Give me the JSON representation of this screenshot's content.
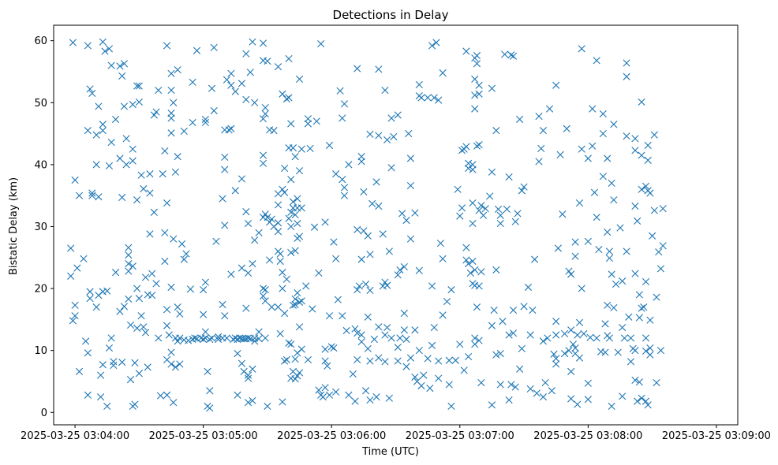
{
  "chart_data": {
    "type": "scatter",
    "title": "Detections in Delay",
    "xlabel": "Time (UTC)",
    "ylabel": "Bistatic Delay (km)",
    "marker": "x",
    "marker_color": "#1f77b4",
    "grid": false,
    "legend": "none",
    "xlim": [
      "2025-03-25 03:03:50",
      "2025-03-25 03:09:10"
    ],
    "ylim": [
      -2,
      62.5
    ],
    "x_ticks": [
      "2025-03-25 03:04:00",
      "2025-03-25 03:05:00",
      "2025-03-25 03:06:00",
      "2025-03-25 03:07:00",
      "2025-03-25 03:08:00",
      "2025-03-25 03:09:00"
    ],
    "y_ticks": [
      0,
      10,
      20,
      30,
      40,
      50,
      60
    ],
    "x_start": "2025-03-25 03:04:00",
    "offsets_s": [
      -2,
      -1,
      0,
      1,
      2,
      3,
      4,
      5,
      6,
      7,
      8,
      9,
      10,
      11,
      12,
      13,
      14,
      15,
      16,
      17,
      18,
      19,
      20,
      21,
      22,
      23,
      24,
      25,
      26,
      27,
      28,
      29,
      30,
      31,
      32,
      33,
      34,
      35,
      36,
      37,
      38,
      39,
      40,
      41,
      42,
      43,
      44,
      45,
      46,
      47,
      48,
      49,
      50,
      51,
      52,
      53,
      54,
      55,
      56,
      57,
      58,
      59,
      60,
      61,
      62,
      63,
      64,
      65,
      66,
      67,
      68,
      69,
      70,
      71,
      72,
      73,
      74,
      75,
      76,
      77,
      78,
      79,
      80,
      81,
      82,
      83,
      84,
      85,
      86,
      87,
      88,
      89,
      90,
      91,
      92,
      93,
      94,
      95,
      96,
      97,
      98,
      99,
      100,
      101,
      102,
      103,
      104,
      105,
      106,
      107,
      108,
      109,
      110,
      111,
      112,
      113,
      114,
      115,
      116,
      117,
      118,
      119,
      120,
      121,
      122,
      123,
      124,
      125,
      126,
      127,
      128,
      129,
      130,
      131,
      132,
      133,
      134,
      135,
      136,
      137,
      138,
      139,
      140,
      141,
      142,
      143,
      144,
      145,
      146,
      147,
      148,
      149,
      150,
      151,
      152,
      153,
      154,
      155,
      156,
      157,
      158,
      159,
      160,
      161,
      162,
      163,
      164,
      165,
      166,
      167,
      168,
      169,
      170,
      171,
      172,
      173,
      174,
      175,
      176,
      177,
      178,
      179,
      180,
      181,
      182,
      183,
      184,
      185,
      186,
      187,
      188,
      189,
      190,
      191,
      192,
      193,
      194,
      195,
      196,
      197,
      198,
      199,
      200,
      201,
      202,
      203,
      204,
      205,
      206,
      207,
      208,
      209,
      210,
      211,
      212,
      213,
      214,
      215,
      216,
      217,
      218,
      219,
      220,
      221,
      222,
      223,
      224,
      225,
      226,
      227,
      228,
      229,
      230,
      231,
      232,
      233,
      234,
      235,
      236,
      237,
      238,
      239,
      240,
      241,
      242,
      243,
      244,
      245,
      246,
      247,
      248,
      249,
      250,
      251,
      252,
      253,
      254,
      255,
      256,
      257,
      258,
      259,
      260,
      261,
      262,
      263,
      264,
      265,
      266,
      267,
      268,
      269,
      270,
      271,
      272,
      273,
      274,
      275,
      276,
      277,
      278,
      279,
      280,
      281,
      282,
      283,
      284,
      285,
      286,
      287,
      288,
      289,
      290,
      291,
      292,
      293,
      294,
      295,
      296,
      297,
      298,
      299,
      300
    ],
    "y": [
      [
        22.0,
        26.5
      ],
      [
        14.8,
        59.7
      ],
      [
        15.6,
        17.3,
        37.5
      ],
      [
        23.3
      ],
      [
        6.6,
        35.0
      ],
      [],
      [
        24.8
      ],
      [
        11.5
      ],
      [
        2.8,
        9.6,
        45.5,
        59.2
      ],
      [
        18.4,
        19.5,
        52.2
      ],
      [
        35.0,
        35.4,
        51.5
      ],
      [],
      [
        17.0,
        40.0,
        44.8
      ],
      [
        18.9,
        34.8,
        49.4
      ],
      [
        2.5,
        6.0
      ],
      [
        7.7,
        19.5,
        45.5,
        46.5,
        59.8
      ],
      [
        58.3
      ],
      [
        1.0,
        19.6
      ],
      [
        10.4,
        39.8,
        58.7
      ],
      [
        12.0,
        43.6,
        56.0
      ],
      [
        7.6,
        8.2
      ],
      [
        22.6,
        47.3
      ],
      [],
      [
        16.3,
        41.0,
        55.9
      ],
      [
        8.1,
        34.7,
        54.3
      ],
      [
        17.1,
        49.4,
        56.3
      ],
      [
        40.0,
        44.2
      ],
      [
        18.3,
        22.8,
        24.0,
        25.4,
        26.6
      ],
      [
        5.3,
        14.1
      ],
      [
        1.0,
        23.6,
        40.6,
        42.5,
        49.7
      ],
      [
        1.3,
        8.0
      ],
      [
        13.6,
        20.0,
        34.3,
        52.7
      ],
      [
        6.3,
        18.4,
        50.1,
        52.7
      ],
      [
        15.6,
        38.3
      ],
      [
        13.8,
        36.1
      ],
      [
        12.9,
        21.8
      ],
      [
        7.3,
        19.0
      ],
      [
        28.8,
        35.4,
        38.5
      ],
      [
        18.9,
        22.4
      ],
      [
        32.3,
        48.0
      ],
      [
        20.8,
        48.5
      ],
      [
        12.0,
        52.0
      ],
      [
        2.7
      ],
      [
        38.5
      ],
      [
        24.4,
        29.0,
        42.2
      ],
      [
        2.8,
        8.5,
        14.0,
        16.6,
        33.8,
        59.2
      ],
      [
        12.5
      ],
      [
        7.8,
        9.7,
        20.2,
        45.1,
        47.5,
        48.3,
        52.0,
        54.7
      ],
      [
        1.6,
        28.0,
        50.0
      ],
      [
        7.3,
        12.0,
        38.8
      ],
      [
        11.5,
        17.0,
        41.3,
        55.3
      ],
      [
        7.8,
        12.0,
        15.9
      ],
      [
        27.2
      ],
      [
        11.7,
        24.7,
        45.4
      ],
      [
        25.6
      ],
      [
        11.6
      ],
      [
        19.9
      ],
      [
        11.8,
        46.8,
        53.3
      ],
      [
        12.0
      ],
      [
        11.9,
        58.4
      ],
      [],
      [
        12.0
      ],
      [
        11.8,
        15.8,
        19.8
      ],
      [
        12.0,
        13.0,
        21.0,
        46.8,
        47.3
      ],
      [
        1.0,
        6.6
      ],
      [
        0.7,
        3.5,
        11.8
      ],
      [
        12.0,
        52.3
      ],
      [
        48.7,
        58.9
      ],
      [
        27.6
      ],
      [
        11.8,
        12.2
      ],
      [],
      [
        12.0,
        17.4,
        34.5
      ],
      [
        15.6,
        30.2,
        39.2,
        41.2,
        45.6
      ],
      [
        12.0,
        53.7
      ],
      [
        45.6
      ],
      [
        22.3,
        45.8,
        52.8,
        54.7
      ],
      [
        11.8
      ],
      [
        12.0,
        35.8,
        51.8
      ],
      [
        2.8,
        9.5,
        11.8
      ],
      [
        12.0
      ],
      [
        7.9,
        11.9,
        23.3,
        37.7,
        53.1
      ],
      [
        6.6,
        11.9
      ],
      [
        11.9,
        16.8,
        32.4,
        50.5,
        57.9
      ],
      [
        1.6,
        5.5,
        6.0,
        12.0,
        22.5,
        30.5
      ],
      [
        11.9,
        54.9
      ],
      [
        1.9,
        7.0,
        24.0,
        59.8
      ],
      [
        11.5,
        12.0,
        27.8,
        50.0
      ],
      [],
      [
        11.9,
        13.0,
        29.0
      ],
      [],
      [
        18.8,
        20.0,
        31.5,
        40.2,
        41.5,
        47.4,
        56.8,
        59.6
      ],
      [
        12.0,
        18.0,
        19.8,
        32.0,
        48.2,
        49.2
      ],
      [
        1.0,
        31.5,
        56.7
      ],
      [
        24.6,
        30.7,
        45.6
      ],
      [
        17.0,
        31.2
      ],
      [
        30.0,
        45.5
      ],
      [],
      [
        17.0,
        26.0,
        29.2,
        30.6,
        33.5,
        35.3,
        55.8
      ],
      [
        12.7,
        24.4,
        25.6
      ],
      [
        1.7,
        20.0,
        22.6,
        36.0,
        51.4
      ],
      [
        8.3,
        16.0,
        35.5,
        39.4
      ],
      [
        8.5,
        21.5,
        50.6
      ],
      [
        11.2,
        31.3,
        42.7,
        50.8,
        57.1
      ],
      [
        5.5,
        11.0,
        25.8,
        30.0,
        32.3,
        37.6,
        46.6
      ],
      [
        6.6,
        17.3,
        33.0,
        34.0,
        42.7
      ],
      [
        5.4,
        8.6,
        17.4,
        18.3,
        26.1,
        31.9,
        41.3
      ],
      [
        5.9,
        9.6,
        19.3,
        28.1,
        30.5,
        33.0,
        34.5
      ],
      [
        6.4,
        13.8,
        17.8,
        28.4,
        39.0,
        53.8
      ],
      [
        10.2,
        18.0,
        33.0,
        42.5
      ],
      [],
      [
        20.4
      ],
      [
        8.5,
        46.6,
        47.4
      ],
      [
        42.6
      ],
      [
        16.7
      ],
      [
        29.9
      ],
      [
        47.0
      ],
      [
        3.6,
        22.5
      ],
      [
        2.8,
        59.5
      ],
      [
        2.5
      ],
      [
        4.0,
        8.3,
        10.2,
        30.7
      ],
      [
        7.5
      ],
      [
        2.8,
        15.6,
        43.1
      ],
      [
        10.6
      ],
      [
        10.4,
        27.5
      ],
      [
        3.3,
        24.8,
        38.5
      ],
      [
        18.2
      ],
      [
        51.9
      ],
      [
        15.6,
        37.6,
        47.5
      ],
      [
        35.0,
        36.3,
        49.8
      ],
      [
        13.2
      ],
      [
        2.8,
        40.0
      ],
      [],
      [
        6.2
      ],
      [
        1.8,
        13.5
      ],
      [
        8.5,
        12.8,
        19.8,
        29.5,
        55.5
      ],
      [
        20.4
      ],
      [
        11.4,
        12.5,
        24.7,
        40.5,
        41.3
      ],
      [
        29.3,
        35.6
      ],
      [
        3.5,
        20.7
      ],
      [
        10.3,
        15.4,
        28.5
      ],
      [
        2.0,
        8.3,
        19.7,
        25.5,
        44.9
      ],
      [
        33.7
      ],
      [
        11.8
      ],
      [
        2.5,
        37.2
      ],
      [
        8.8,
        13.8,
        33.3,
        44.7,
        55.4
      ],
      [],
      [
        20.4,
        28.8
      ],
      [
        8.2,
        12.5,
        21.0,
        52.0
      ],
      [
        13.7,
        20.5,
        44.0
      ],
      [
        2.3,
        26.0
      ],
      [
        12.0,
        39.5,
        47.5
      ],
      [
        44.5
      ],
      [],
      [
        8.3,
        10.5,
        22.2,
        48.0
      ],
      [
        12.0,
        23.0
      ],
      [
        32.1
      ],
      [
        13.3,
        16.0,
        23.5
      ],
      [
        7.4,
        11.8,
        31.0
      ],
      [
        45.0
      ],
      [
        8.8,
        28.0,
        36.6,
        41.0
      ],
      [],
      [
        5.7,
        13.3,
        32.2
      ],
      [
        5.0
      ],
      [
        10.0,
        22.9,
        51.1,
        52.9
      ],
      [
        4.3,
        50.8
      ],
      [
        6.0
      ],
      [],
      [
        8.7,
        50.8
      ],
      [
        3.9
      ],
      [
        10.8,
        20.4,
        59.2
      ],
      [
        13.7,
        50.8
      ],
      [
        59.7
      ],
      [
        5.5,
        8.3,
        50.4
      ],
      [
        27.3
      ],
      [
        15.7,
        24.8,
        54.8
      ],
      [],
      [
        17.9
      ],
      [
        4.5,
        8.4
      ],
      [
        1.0,
        19.8
      ],
      [],
      [
        8.4
      ],
      [
        36.0
      ],
      [
        11.0,
        31.7
      ],
      [
        33.0,
        42.3
      ],
      [
        6.8,
        42.5
      ],
      [
        24.6,
        26.6,
        58.3,
        42.9
      ],
      [
        9.0,
        24.0,
        39.4,
        40.2
      ],
      [
        22.5
      ],
      [
        20.8,
        24.4,
        30.5,
        33.8,
        39.2,
        40.0
      ],
      [
        12.0,
        11.0,
        20.5,
        23.0,
        49.0,
        51.2,
        53.8,
        57.2
      ],
      [
        17.0,
        43.0,
        56.3,
        57.6
      ],
      [
        11.6,
        20.4,
        32.6,
        43.2,
        51.4,
        52.8
      ],
      [
        4.8,
        22.7,
        33.4
      ],
      [
        31.8
      ],
      [
        32.9
      ],
      [],
      [
        34.9
      ],
      [
        1.2,
        14.0,
        38.8,
        52.3
      ],
      [
        16.5
      ],
      [
        9.3,
        23.0,
        45.5
      ],
      [
        32.8
      ],
      [
        4.5,
        9.5,
        30.5,
        31.8
      ],
      [
        14.7
      ],
      [
        57.8
      ],
      [
        32.8
      ],
      [
        2.0,
        12.5,
        38.0
      ],
      [
        4.5,
        57.7
      ],
      [
        12.8,
        16.5,
        57.5
      ],
      [
        4.1,
        30.8
      ],
      [
        32.1
      ],
      [
        7.0,
        47.3
      ],
      [
        10.3,
        35.8
      ],
      [
        17.1,
        36.4
      ],
      [],
      [
        20.2
      ],
      [
        3.8,
        12.5
      ],
      [
        16.5
      ],
      [
        24.7
      ],
      [
        3.1
      ],
      [
        40.5,
        47.8
      ],
      [
        42.6
      ],
      [
        2.5,
        11.5,
        45.5
      ],
      [
        4.8
      ],
      [
        12.0
      ],
      [
        49.0
      ],
      [
        3.5
      ],
      [
        9.4
      ],
      [
        7.8,
        8.7,
        12.5,
        14.7,
        52.8
      ],
      [
        26.5
      ],
      [
        41.6
      ],
      [
        32.0
      ],
      [
        9.5,
        12.7
      ],
      [
        45.8
      ],
      [
        10.0,
        22.8
      ],
      [
        2.2,
        6.6,
        13.3,
        22.3
      ],
      [
        11.0
      ],
      [
        9.5,
        10.4,
        25.2,
        27.5
      ],
      [
        1.3,
        12.5
      ],
      [
        8.8,
        14.5,
        33.8
      ],
      [
        20.0,
        42.5,
        58.7
      ],
      [
        12.7
      ],
      [],
      [
        2.1,
        4.7,
        27.6,
        41.0
      ],
      [
        12.1
      ],
      [
        43.0,
        49.0
      ],
      [
        35.5
      ],
      [
        12.0,
        31.5,
        56.8
      ],
      [
        26.3
      ],
      [
        9.8
      ],
      [
        38.1,
        45.0,
        48.2
      ],
      [
        9.7,
        14.3
      ],
      [
        12.4,
        17.3,
        29.1,
        41.0
      ],
      [
        12.0,
        24.9,
        26.0
      ],
      [
        1.0,
        22.3,
        37.0
      ],
      [
        16.9,
        34.3,
        46.5
      ],
      [
        20.7
      ],
      [
        9.7
      ],
      [
        29.8
      ],
      [
        2.6,
        13.7,
        21.2
      ],
      [
        12.0
      ],
      [
        26.0,
        44.6,
        54.2,
        56.4
      ],
      [
        15.4
      ],
      [
        8.2,
        12.0
      ],
      [
        10.3
      ],
      [
        5.2,
        10.0,
        22.4,
        33.3,
        42.3,
        44.2
      ],
      [
        1.8,
        30.9
      ],
      [
        4.9,
        15.3,
        19.0
      ],
      [
        2.3,
        16.8,
        36.0,
        41.5,
        50.1
      ],
      [
        17.0
      ],
      [
        1.8,
        9.9,
        12.0,
        21.1,
        36.5
      ],
      [
        1.2,
        35.8,
        40.7,
        43.1
      ],
      [
        9.3,
        10.4,
        14.9,
        35.4
      ],
      [
        28.5
      ],
      [
        32.6,
        44.8
      ],
      [
        4.8,
        18.6
      ],
      [
        25.9
      ],
      [
        10.0,
        23.2
      ],
      [
        26.9,
        32.9
      ]
    ]
  }
}
